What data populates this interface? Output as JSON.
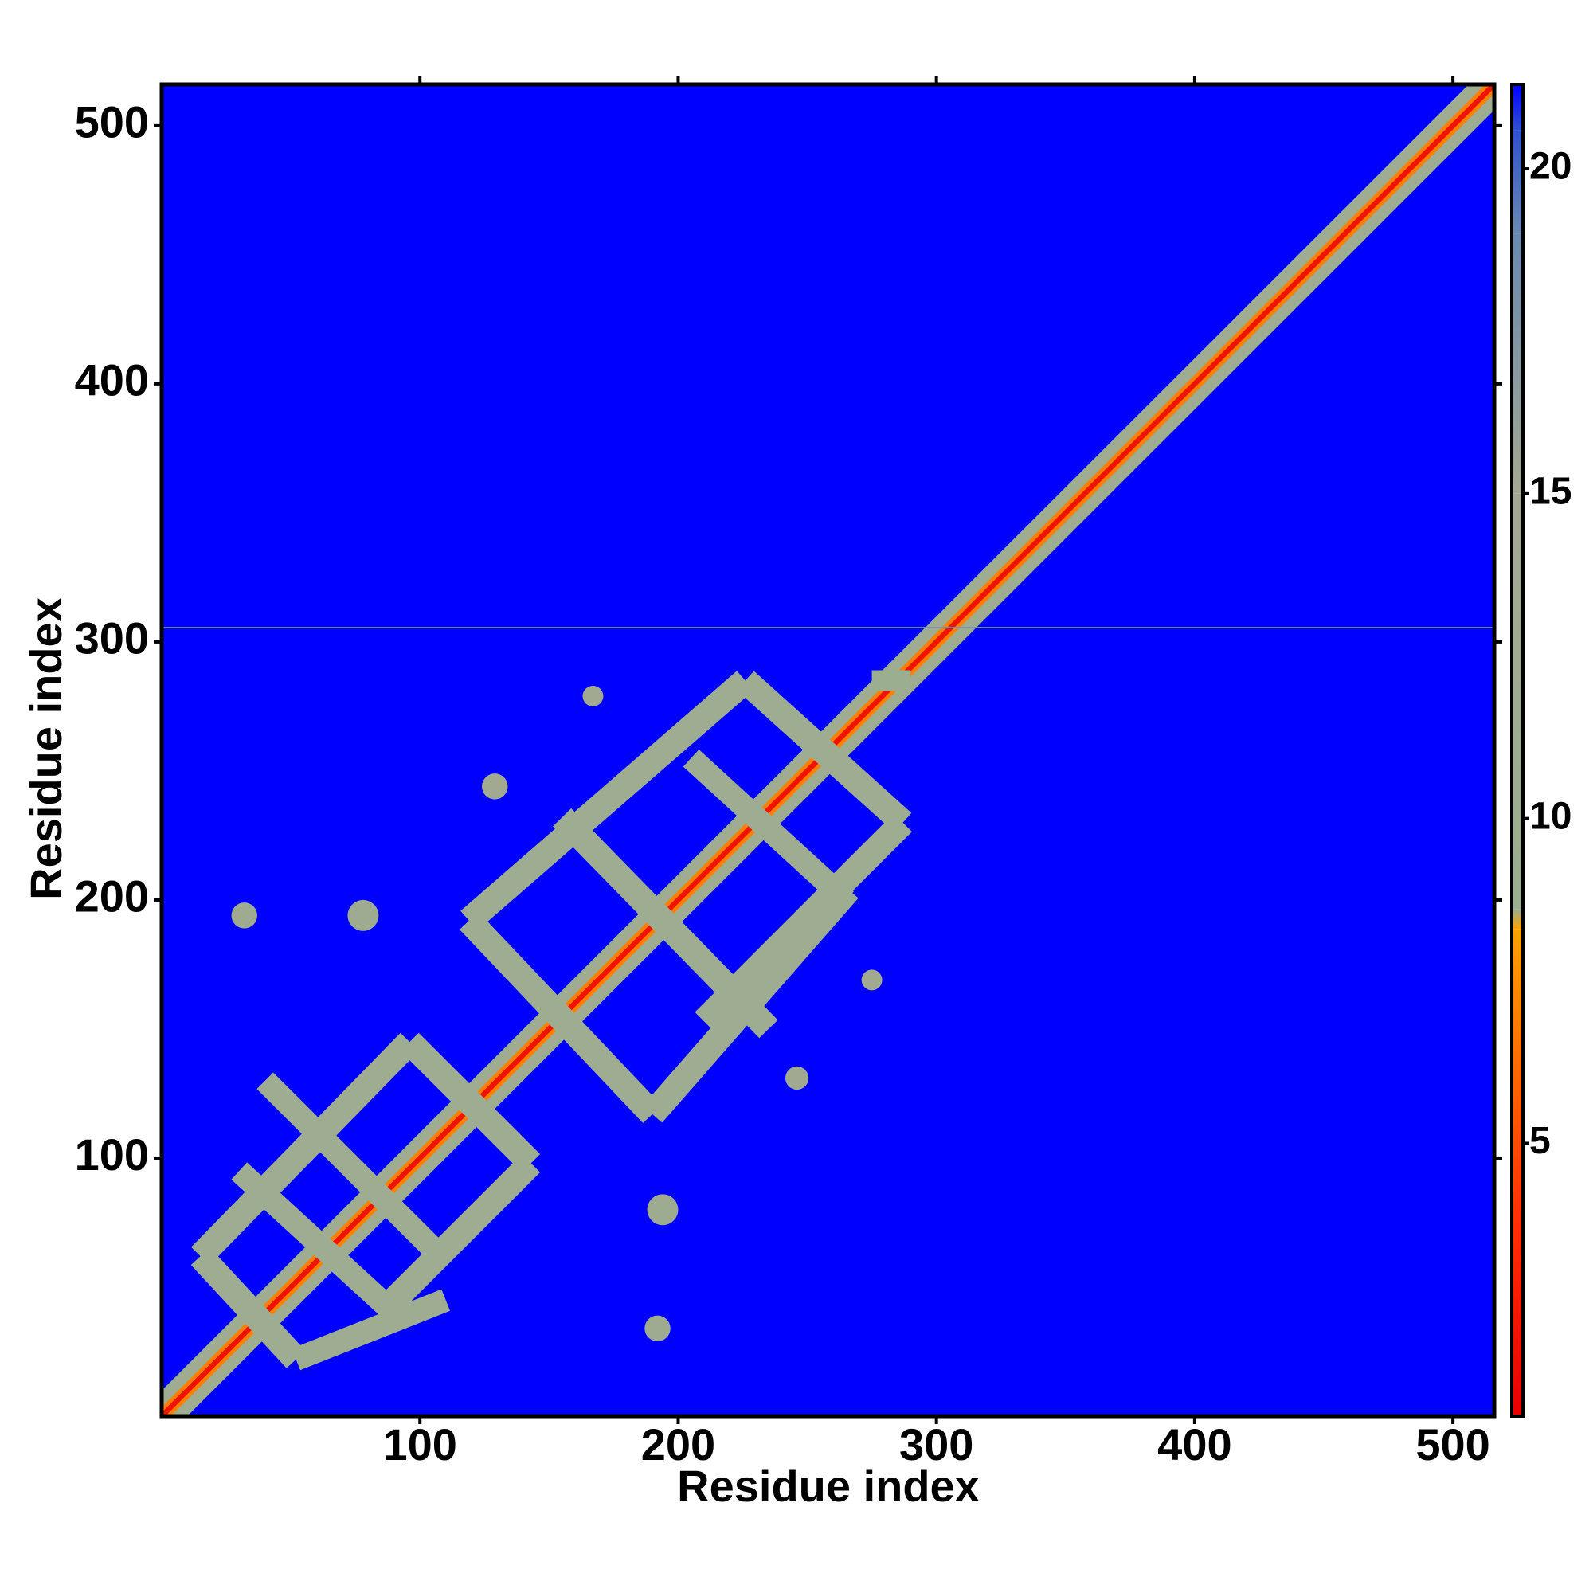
{
  "chart_data": {
    "type": "heatmap",
    "xlabel": "Residue index",
    "ylabel": "Residue index",
    "xlim": [
      0,
      516
    ],
    "ylim": [
      0,
      516
    ],
    "xticks": [
      100,
      200,
      300,
      400,
      500
    ],
    "yticks": [
      100,
      200,
      300,
      400,
      500
    ],
    "clim": [
      0.8,
      21.3
    ],
    "cticks": [
      5,
      10,
      15,
      20
    ],
    "colorscale": [
      [
        0.8,
        "#e60000"
      ],
      [
        4,
        "#ff3300"
      ],
      [
        8.3,
        "#ffa000"
      ],
      [
        8.6,
        "#9aae90"
      ],
      [
        15,
        "#a4a892"
      ],
      [
        19,
        "#6a8ab0"
      ],
      [
        20.6,
        "#3050d0"
      ],
      [
        21.3,
        "#0000ff"
      ]
    ],
    "background_value": 21.3,
    "features": [
      {
        "x": [
          0,
          516
        ],
        "y": [
          0,
          516
        ],
        "width": 14,
        "value": 11
      },
      {
        "x": [
          0,
          516
        ],
        "y": [
          0,
          516
        ],
        "width": 5,
        "value": 7
      },
      {
        "x": [
          0,
          516
        ],
        "y": [
          0,
          516
        ],
        "width": 2,
        "value": 2
      },
      {
        "x": [
          0,
          516
        ],
        "y": [
          305.5,
          305.5
        ],
        "width": 0.6,
        "value": 18
      },
      {
        "x": [
          119,
          226
        ],
        "y": [
          192,
          285
        ],
        "width": 10,
        "value": 11
      },
      {
        "x": [
          226,
          287
        ],
        "y": [
          285,
          230
        ],
        "width": 10,
        "value": 11
      },
      {
        "x": [
          287,
          210
        ],
        "y": [
          230,
          153
        ],
        "width": 10,
        "value": 11
      },
      {
        "x": [
          119,
          190
        ],
        "y": [
          192,
          117
        ],
        "width": 10,
        "value": 11
      },
      {
        "x": [
          190,
          266
        ],
        "y": [
          117,
          204
        ],
        "width": 10,
        "value": 11
      },
      {
        "x": [
          155,
          235
        ],
        "y": [
          232,
          150
        ],
        "width": 10,
        "value": 11
      },
      {
        "x": [
          205,
          265
        ],
        "y": [
          255,
          200
        ],
        "width": 9,
        "value": 11
      },
      {
        "x": [
          15,
          96
        ],
        "y": [
          62,
          145
        ],
        "width": 10,
        "value": 11
      },
      {
        "x": [
          96,
          143
        ],
        "y": [
          145,
          98
        ],
        "width": 10,
        "value": 11
      },
      {
        "x": [
          143,
          90
        ],
        "y": [
          98,
          45
        ],
        "width": 10,
        "value": 11
      },
      {
        "x": [
          52,
          15
        ],
        "y": [
          22,
          62
        ],
        "width": 10,
        "value": 11
      },
      {
        "x": [
          52,
          110
        ],
        "y": [
          22,
          45
        ],
        "width": 9,
        "value": 11
      },
      {
        "x": [
          30,
          90
        ],
        "y": [
          95,
          40
        ],
        "width": 9,
        "value": 11
      },
      {
        "x": [
          40,
          110
        ],
        "y": [
          130,
          60
        ],
        "width": 9,
        "value": 11
      },
      {
        "x": [
          32,
          32
        ],
        "y": [
          194,
          194
        ],
        "width": 10,
        "value": 12
      },
      {
        "x": [
          78,
          78
        ],
        "y": [
          194,
          194
        ],
        "width": 12,
        "value": 12
      },
      {
        "x": [
          194,
          194
        ],
        "y": [
          80,
          80
        ],
        "width": 12,
        "value": 12
      },
      {
        "x": [
          192,
          192
        ],
        "y": [
          34,
          34
        ],
        "width": 10,
        "value": 12
      },
      {
        "x": [
          129,
          129
        ],
        "y": [
          244,
          244
        ],
        "width": 10,
        "value": 13
      },
      {
        "x": [
          167,
          167
        ],
        "y": [
          279,
          279
        ],
        "width": 8,
        "value": 13
      },
      {
        "x": [
          246,
          246
        ],
        "y": [
          131,
          131
        ],
        "width": 9,
        "value": 13
      },
      {
        "x": [
          275,
          275
        ],
        "y": [
          169,
          169
        ],
        "width": 8,
        "value": 13
      },
      {
        "x": [
          275,
          290
        ],
        "y": [
          285,
          285
        ],
        "width": 8,
        "value": 9
      }
    ]
  }
}
